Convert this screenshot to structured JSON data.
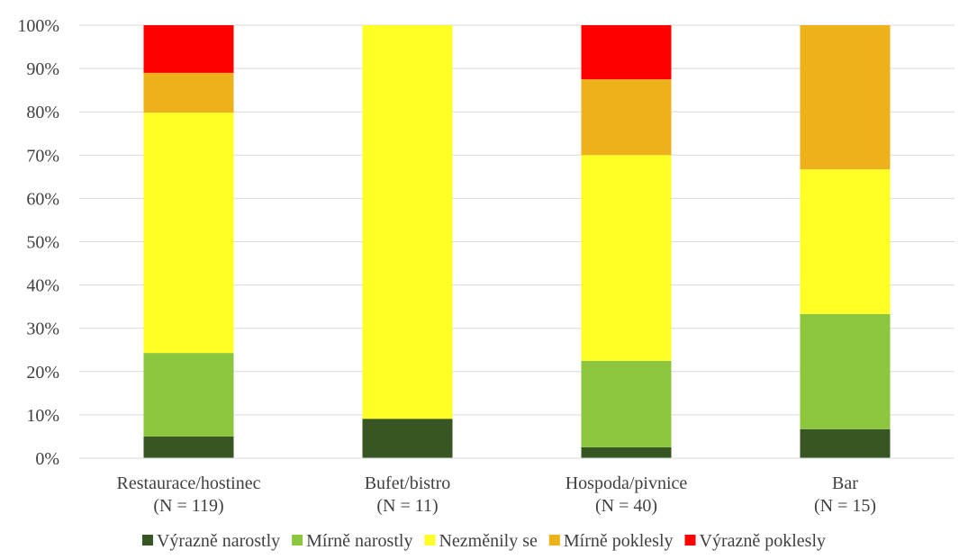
{
  "chart_data": {
    "type": "bar",
    "stacked": true,
    "categories": [
      [
        "Restaurace/hostinec",
        "(N = 119)"
      ],
      [
        "Bufet/bistro",
        "(N = 11)"
      ],
      [
        "Hospoda/pivnice",
        "(N = 40)"
      ],
      [
        "Bar",
        "(N = 15)"
      ]
    ],
    "series": [
      {
        "name": "Výrazně narostly",
        "color": "#375623",
        "values": [
          5.0,
          9.1,
          2.5,
          6.7
        ]
      },
      {
        "name": "Mírně narostly",
        "color": "#8cc63f",
        "values": [
          19.3,
          0.0,
          20.0,
          26.6
        ]
      },
      {
        "name": "Nezměnily se",
        "color": "#ffff26",
        "values": [
          55.5,
          90.9,
          47.5,
          33.4
        ]
      },
      {
        "name": "Mírně poklesly",
        "color": "#edb21b",
        "values": [
          9.2,
          0.0,
          17.5,
          33.3
        ]
      },
      {
        "name": "Výrazně poklesly",
        "color": "#ff0000",
        "values": [
          11.0,
          0.0,
          12.5,
          0.0
        ]
      }
    ],
    "ylim": [
      0,
      100
    ],
    "yticks": [
      "0%",
      "10%",
      "20%",
      "30%",
      "40%",
      "50%",
      "60%",
      "70%",
      "80%",
      "90%",
      "100%"
    ],
    "grid": true,
    "legend_position": "bottom"
  }
}
